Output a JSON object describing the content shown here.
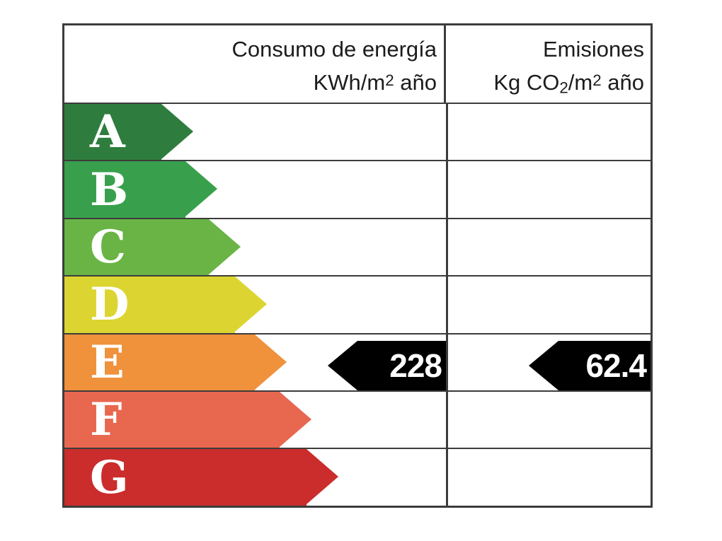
{
  "header": {
    "consumption": {
      "line1": "Consumo de energía",
      "line2_pre": "KWh/m",
      "line2_sup": "2",
      "line2_post": " año"
    },
    "emissions": {
      "line1": "Emisiones",
      "line2_pre": "Kg CO",
      "line2_sub": "2",
      "line2_mid": "/m",
      "line2_sup": "2",
      "line2_post": " año"
    }
  },
  "scale": {
    "rows": [
      {
        "label": "A",
        "color": "#2e7d3e"
      },
      {
        "label": "B",
        "color": "#38a04c"
      },
      {
        "label": "C",
        "color": "#69b445"
      },
      {
        "label": "D",
        "color": "#dcd531"
      },
      {
        "label": "E",
        "color": "#f0913c"
      },
      {
        "label": "F",
        "color": "#e8674f"
      },
      {
        "label": "G",
        "color": "#ca2d2b"
      }
    ]
  },
  "indicator": {
    "rating": "E",
    "consumption_value": "228",
    "emissions_value": "62.4",
    "arrow_color": "#000000",
    "text_color": "#ffffff"
  },
  "colors": {
    "border": "#3c3c3c",
    "background": "#ffffff",
    "header_text": "#1c1c1c",
    "letter_text": "#ffffff"
  },
  "chart_data": {
    "type": "bar",
    "subtype": "energy-efficiency-rating-label",
    "orientation": "horizontal",
    "categories": [
      "A",
      "B",
      "C",
      "D",
      "E",
      "F",
      "G"
    ],
    "bar_colors": [
      "#2e7d3e",
      "#38a04c",
      "#69b445",
      "#dcd531",
      "#f0913c",
      "#e8674f",
      "#ca2d2b"
    ],
    "bar_relative_lengths": [
      182,
      216,
      249,
      286,
      314,
      349,
      387
    ],
    "columns": [
      "Consumo de energía KWh/m2 año",
      "Emisiones Kg CO2/m2 año"
    ],
    "series": [
      {
        "name": "Consumo de energía KWh/m2 año",
        "rating": "E",
        "value": 228
      },
      {
        "name": "Emisiones Kg CO2/m2 año",
        "rating": "E",
        "value": 62.4
      }
    ],
    "title": "",
    "legend": false,
    "grid": false
  }
}
